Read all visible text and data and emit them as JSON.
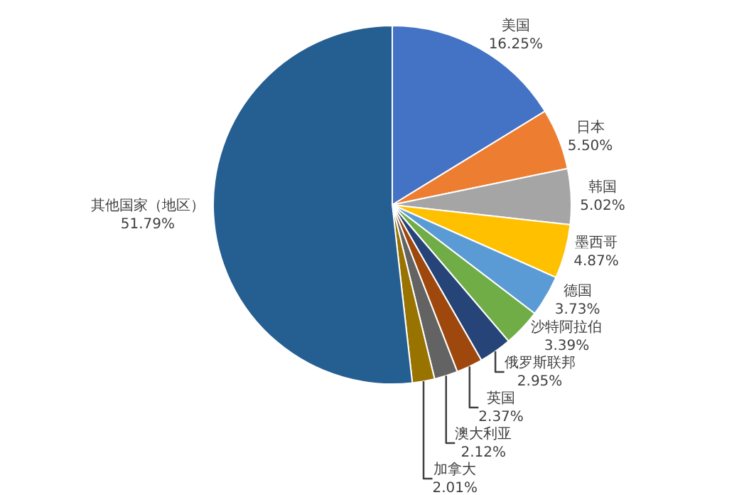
{
  "chart_data": {
    "type": "pie",
    "categories": [
      "美国",
      "日本",
      "韩国",
      "墨西哥",
      "德国",
      "沙特阿拉伯",
      "俄罗斯联邦",
      "英国",
      "澳大利亚",
      "加拿大",
      "其他国家（地区）"
    ],
    "values": [
      16.25,
      5.5,
      5.02,
      4.87,
      3.73,
      3.39,
      2.95,
      2.37,
      2.12,
      2.01,
      51.79
    ],
    "value_labels": [
      "16.25%",
      "5.50%",
      "5.02%",
      "4.87%",
      "3.73%",
      "3.39%",
      "2.95%",
      "2.37%",
      "2.12%",
      "2.01%",
      "51.79%"
    ],
    "colors": [
      "#4472c4",
      "#ed7d31",
      "#a5a5a5",
      "#ffc000",
      "#5b9bd5",
      "#70ad47",
      "#264478",
      "#9e480e",
      "#636363",
      "#997300",
      "#255e91"
    ],
    "legend": false
  }
}
